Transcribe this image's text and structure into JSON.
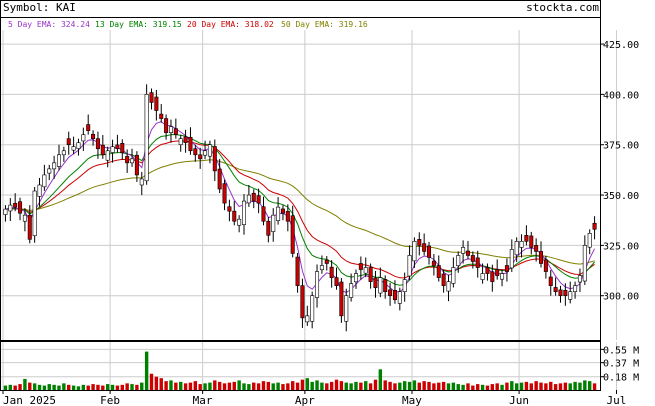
{
  "header": {
    "symbol_label": "Symbol: KAI",
    "brand": "stockta.com",
    "ema_legend": [
      {
        "text": "5 Day EMA: 324.24",
        "color": "#9933cc"
      },
      {
        "text": "13 Day EMA: 319.15",
        "color": "#008000"
      },
      {
        "text": "20 Day EMA: 318.02",
        "color": "#cc0000"
      },
      {
        "text": "50 Day EMA: 319.16",
        "color": "#808000"
      }
    ]
  },
  "colors": {
    "up_candle": "#ffffff",
    "down_candle": "#cc0000",
    "candle_outline": "#000000",
    "volume_up": "#008000",
    "volume_down": "#cc0000",
    "grid": "#cccccc",
    "ema5": "#9933cc",
    "ema13": "#008000",
    "ema20": "#cc0000",
    "ema50": "#808000"
  },
  "chart_data": {
    "type": "candlestick",
    "title": "Symbol: KAI",
    "price_axis": {
      "ylim": [
        278,
        430
      ],
      "ticks": [
        "425.00",
        "400.00",
        "375.00",
        "350.00",
        "325.00",
        "300.00"
      ],
      "tick_values": [
        425,
        400,
        375,
        350,
        325,
        300
      ]
    },
    "volume_axis": {
      "ylim": [
        0,
        0.65
      ],
      "ticks": [
        "0.55 M",
        "0.37 M",
        "0.18 M"
      ],
      "tick_values": [
        0.55,
        0.37,
        0.18
      ]
    },
    "x_labels": [
      "Jan 2025",
      "Feb",
      "Mar",
      "Apr",
      "May",
      "Jun",
      "Jul"
    ],
    "x_label_positions": [
      0,
      22,
      41,
      62,
      84,
      106,
      126
    ],
    "grid": true,
    "closes": [
      343,
      345,
      344,
      341,
      340,
      328,
      352,
      355,
      360,
      363,
      366,
      370,
      372,
      375,
      374,
      376,
      380,
      382,
      378,
      373,
      370,
      372,
      374,
      373,
      371,
      366,
      368,
      360,
      358,
      400,
      396,
      392,
      388,
      381,
      384,
      380,
      378,
      376,
      372,
      370,
      368,
      372,
      375,
      362,
      353,
      346,
      342,
      337,
      338,
      347,
      350,
      347,
      346,
      337,
      330,
      340,
      344,
      341,
      337,
      321,
      305,
      289,
      290,
      300,
      312,
      315,
      316,
      309,
      305,
      290,
      300,
      306,
      311,
      313,
      314,
      307,
      304,
      309,
      302,
      300,
      298,
      302,
      308,
      320,
      327,
      325,
      322,
      319,
      315,
      309,
      305,
      307,
      314,
      320,
      324,
      320,
      317,
      314,
      311,
      311,
      307,
      310,
      311,
      312,
      323,
      327,
      327,
      327,
      324,
      322,
      316,
      312,
      305,
      302,
      300,
      300,
      302,
      305,
      310,
      325,
      331,
      333
    ],
    "series": [
      {
        "name": "5 Day EMA",
        "last": 324.24
      },
      {
        "name": "13 Day EMA",
        "last": 319.15
      },
      {
        "name": "20 Day EMA",
        "last": 318.02
      },
      {
        "name": "50 Day EMA",
        "last": 319.16
      }
    ],
    "volume": [
      0.06,
      0.07,
      0.06,
      0.08,
      0.15,
      0.1,
      0.09,
      0.07,
      0.06,
      0.08,
      0.07,
      0.06,
      0.09,
      0.07,
      0.06,
      0.05,
      0.07,
      0.06,
      0.08,
      0.07,
      0.06,
      0.08,
      0.07,
      0.06,
      0.07,
      0.09,
      0.08,
      0.07,
      0.1,
      0.52,
      0.22,
      0.18,
      0.16,
      0.12,
      0.13,
      0.1,
      0.11,
      0.09,
      0.1,
      0.12,
      0.08,
      0.09,
      0.1,
      0.13,
      0.11,
      0.09,
      0.1,
      0.11,
      0.13,
      0.09,
      0.08,
      0.1,
      0.09,
      0.12,
      0.11,
      0.09,
      0.1,
      0.08,
      0.09,
      0.12,
      0.1,
      0.14,
      0.16,
      0.11,
      0.13,
      0.1,
      0.09,
      0.11,
      0.14,
      0.12,
      0.1,
      0.09,
      0.11,
      0.1,
      0.12,
      0.09,
      0.14,
      0.28,
      0.13,
      0.11,
      0.09,
      0.1,
      0.12,
      0.11,
      0.13,
      0.1,
      0.12,
      0.11,
      0.09,
      0.1,
      0.11,
      0.09,
      0.1,
      0.08,
      0.07,
      0.09,
      0.06,
      0.08,
      0.07,
      0.06,
      0.08,
      0.09,
      0.07,
      0.1,
      0.12,
      0.09,
      0.1,
      0.11,
      0.09,
      0.12,
      0.1,
      0.09,
      0.11,
      0.08,
      0.09,
      0.1,
      0.09,
      0.11,
      0.1,
      0.13,
      0.12,
      0.09
    ]
  }
}
